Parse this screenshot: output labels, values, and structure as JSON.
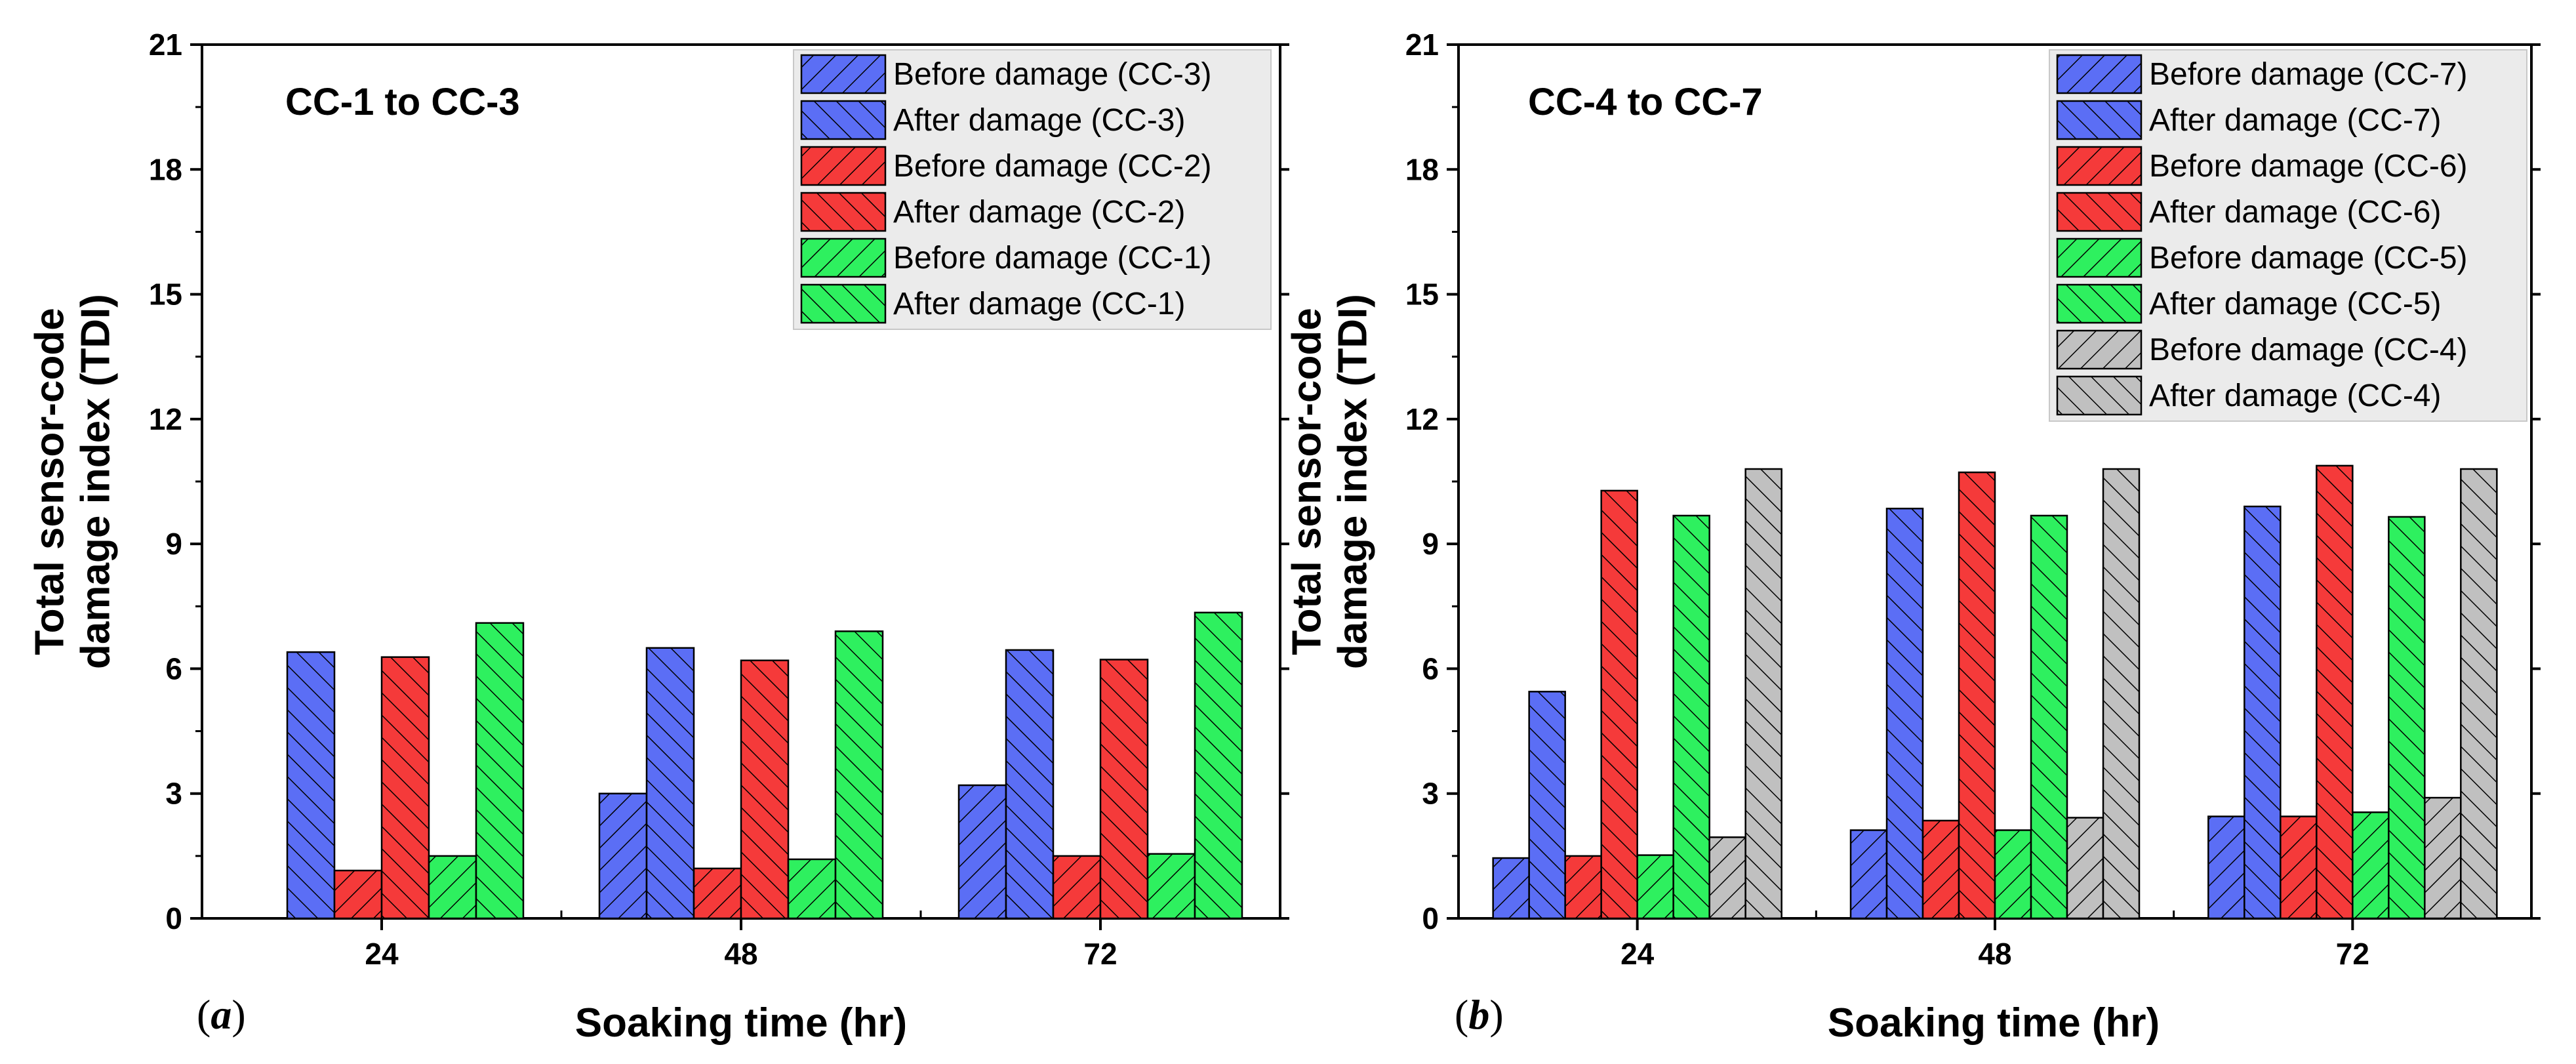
{
  "chart_data": [
    {
      "type": "bar",
      "panel_label": "a",
      "title": "CC-1 to CC-3",
      "xlabel": "Soaking time (hr)",
      "ylabel_lines": [
        "Total sensor-code",
        "damage index (TDI)"
      ],
      "categories": [
        "24",
        "48",
        "72"
      ],
      "ylim": [
        0,
        21
      ],
      "yticks": [
        0,
        3,
        6,
        9,
        12,
        15,
        18,
        21
      ],
      "grid": false,
      "legend_position": "top-right",
      "series": [
        {
          "name": "Before damage (CC-3)",
          "color": "#5b6ef5",
          "hatch": "forward",
          "values": [
            null,
            3.0,
            3.2
          ]
        },
        {
          "name": "After damage (CC-3)",
          "color": "#5b6ef5",
          "hatch": "back",
          "values": [
            6.4,
            6.5,
            6.45
          ]
        },
        {
          "name": "Before damage (CC-2)",
          "color": "#f53a3a",
          "hatch": "forward",
          "values": [
            1.15,
            1.2,
            1.5
          ]
        },
        {
          "name": "After damage (CC-2)",
          "color": "#f53a3a",
          "hatch": "back",
          "values": [
            6.28,
            6.2,
            6.22
          ]
        },
        {
          "name": "Before damage (CC-1)",
          "color": "#2ef05f",
          "hatch": "forward",
          "values": [
            1.5,
            1.42,
            1.55
          ]
        },
        {
          "name": "After damage (CC-1)",
          "color": "#2ef05f",
          "hatch": "back",
          "values": [
            7.1,
            6.9,
            7.35
          ]
        }
      ]
    },
    {
      "type": "bar",
      "panel_label": "b",
      "title": "CC-4 to CC-7",
      "xlabel": "Soaking time (hr)",
      "ylabel_lines": [
        "Total sensor-code",
        "damage index (TDI)"
      ],
      "categories": [
        "24",
        "48",
        "72"
      ],
      "ylim": [
        0,
        21
      ],
      "yticks": [
        0,
        3,
        6,
        9,
        12,
        15,
        18,
        21
      ],
      "grid": false,
      "legend_position": "top-right",
      "series": [
        {
          "name": "Before damage (CC-7)",
          "color": "#5b6ef5",
          "hatch": "forward",
          "values": [
            1.45,
            2.12,
            2.45
          ]
        },
        {
          "name": "After damage (CC-7)",
          "color": "#5b6ef5",
          "hatch": "back",
          "values": [
            5.45,
            9.85,
            9.9
          ]
        },
        {
          "name": "Before damage (CC-6)",
          "color": "#f53a3a",
          "hatch": "forward",
          "values": [
            1.5,
            2.35,
            2.45
          ]
        },
        {
          "name": "After damage (CC-6)",
          "color": "#f53a3a",
          "hatch": "back",
          "values": [
            10.28,
            10.72,
            10.88
          ]
        },
        {
          "name": "Before damage (CC-5)",
          "color": "#2ef05f",
          "hatch": "forward",
          "values": [
            1.52,
            2.12,
            2.55
          ]
        },
        {
          "name": "After damage (CC-5)",
          "color": "#2ef05f",
          "hatch": "back",
          "values": [
            9.68,
            9.68,
            9.65
          ]
        },
        {
          "name": "Before damage (CC-4)",
          "color": "#c0c0c0",
          "hatch": "forward",
          "values": [
            1.95,
            2.42,
            2.9
          ]
        },
        {
          "name": "After damage (CC-4)",
          "color": "#c0c0c0",
          "hatch": "back",
          "values": [
            10.8,
            10.8,
            10.8
          ]
        }
      ]
    }
  ]
}
